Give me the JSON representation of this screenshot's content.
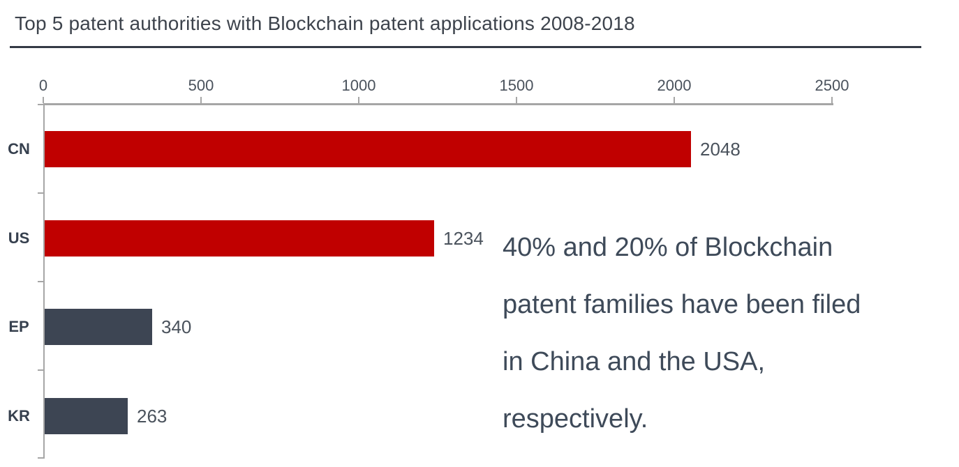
{
  "title": "Top 5 patent authorities with Blockchain patent applications 2008-2018",
  "chart_data": {
    "type": "bar",
    "orientation": "horizontal",
    "title": "Top 5 patent authorities with Blockchain patent applications 2008-2018",
    "categories": [
      "CN",
      "US",
      "EP",
      "KR"
    ],
    "values": [
      2048,
      1234,
      340,
      263
    ],
    "data_labels": [
      "2048",
      "1234",
      "340",
      "263"
    ],
    "bar_colors": [
      "#c00000",
      "#c00000",
      "#3d4553",
      "#3d4553"
    ],
    "x_ticks": [
      "0",
      "500",
      "1000",
      "1500",
      "2000",
      "2500"
    ],
    "x_tick_values": [
      0,
      500,
      1000,
      1500,
      2000,
      2500
    ],
    "xlim": [
      0,
      2500
    ],
    "xlabel": "",
    "ylabel": "",
    "grid": false,
    "value_axis_position": "top",
    "legend": "none"
  },
  "annotation": {
    "text": "40% and 20% of Blockchain patent families have been filed in China and the USA, respectively.",
    "lines": [
      "40% and 20% of Blockchain",
      "patent families have been filed",
      "in China and the USA,",
      "respectively."
    ]
  },
  "colors": {
    "bar_red": "#c00000",
    "bar_slate": "#3d4553",
    "axis_gray": "#a6a6a6",
    "title_text": "#3d434c",
    "label_text": "#4a525c",
    "category_text": "#36404e",
    "annotation_text": "#3e4a59",
    "divider": "#333a45",
    "background": "#ffffff"
  }
}
